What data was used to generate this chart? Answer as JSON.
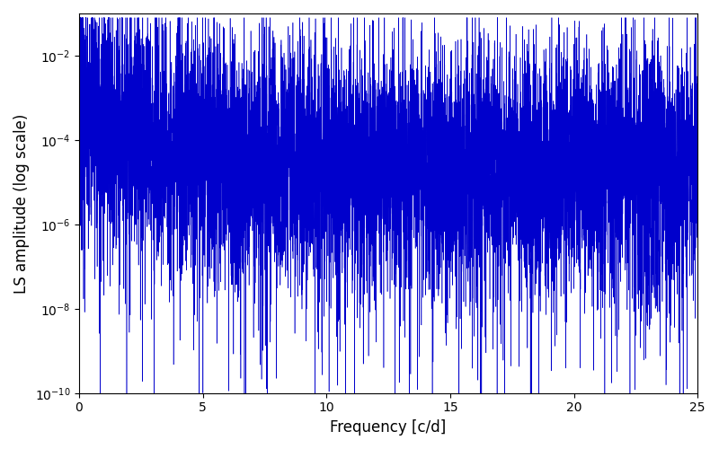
{
  "xlabel": "Frequency [c/d]",
  "ylabel": "LS amplitude (log scale)",
  "title": "",
  "line_color": "#0000cc",
  "background_color": "#ffffff",
  "xlim": [
    0,
    25
  ],
  "ylim_log_min": -10,
  "ylim_log_max": -1,
  "freq_max": 25.0,
  "n_points": 8000,
  "seed": 12345,
  "figsize": [
    8.0,
    5.0
  ],
  "dpi": 100
}
